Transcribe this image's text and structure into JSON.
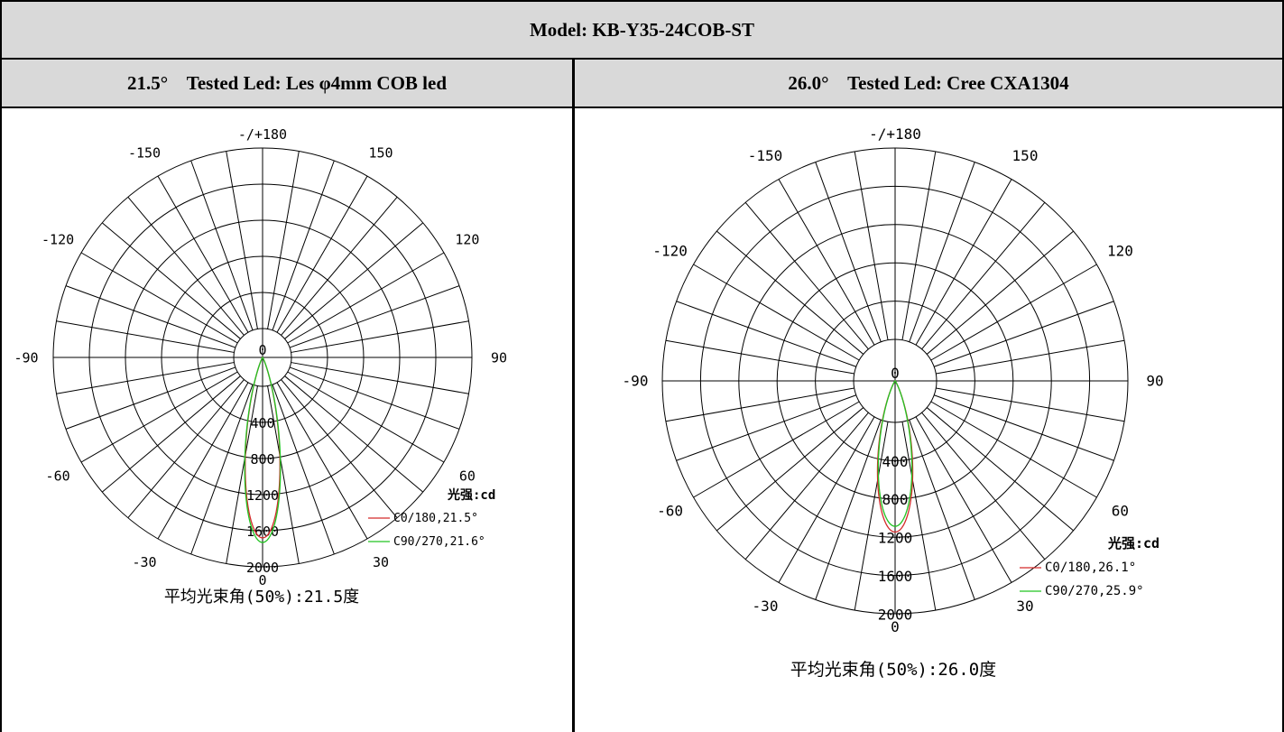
{
  "header": {
    "model_title": "Model: KB-Y35-24COB-ST"
  },
  "panels": [
    {
      "heading": "21.5°    Tested Led: Les φ4mm COB led",
      "summary": "平均光束角(50%):21.5度"
    },
    {
      "heading": "26.0°    Tested Led: Cree CXA1304",
      "summary": "平均光束角(50%):26.0度"
    }
  ],
  "colors": {
    "c0": "#d42a2a",
    "c90": "#22c422",
    "grid": "#000000",
    "header_bg": "#d9d9d9"
  },
  "chart_data": [
    {
      "type": "polar",
      "angle_tick_labels": [
        "-/+180",
        "-150",
        "150",
        "-120",
        "120",
        "-90",
        "90",
        "-60",
        "60",
        "-30",
        "30",
        "0"
      ],
      "radial_tick_labels": [
        "0",
        "400",
        "800",
        "1200",
        "1600",
        "2000"
      ],
      "radial_range": [
        0,
        2000
      ],
      "unit_label": "光强:cd",
      "series": [
        {
          "name": "C0/180,21.5°",
          "peak_cd": 2000,
          "beam_angle_deg": 21.5,
          "color": "#d42a2a"
        },
        {
          "name": "C90/270,21.6°",
          "peak_cd": 2050,
          "beam_angle_deg": 21.6,
          "color": "#22c422"
        }
      ]
    },
    {
      "type": "polar",
      "angle_tick_labels": [
        "-/+180",
        "-150",
        "150",
        "-120",
        "120",
        "-90",
        "90",
        "-60",
        "60",
        "-30",
        "30",
        "0"
      ],
      "radial_tick_labels": [
        "0",
        "400",
        "800",
        "1200",
        "1600",
        "2000"
      ],
      "radial_range": [
        0,
        2000
      ],
      "unit_label": "光强:cd",
      "series": [
        {
          "name": "C0/180,26.1°",
          "peak_cd": 1580,
          "beam_angle_deg": 26.1,
          "color": "#d42a2a"
        },
        {
          "name": "C90/270,25.9°",
          "peak_cd": 1520,
          "beam_angle_deg": 25.9,
          "color": "#22c422"
        }
      ]
    }
  ]
}
